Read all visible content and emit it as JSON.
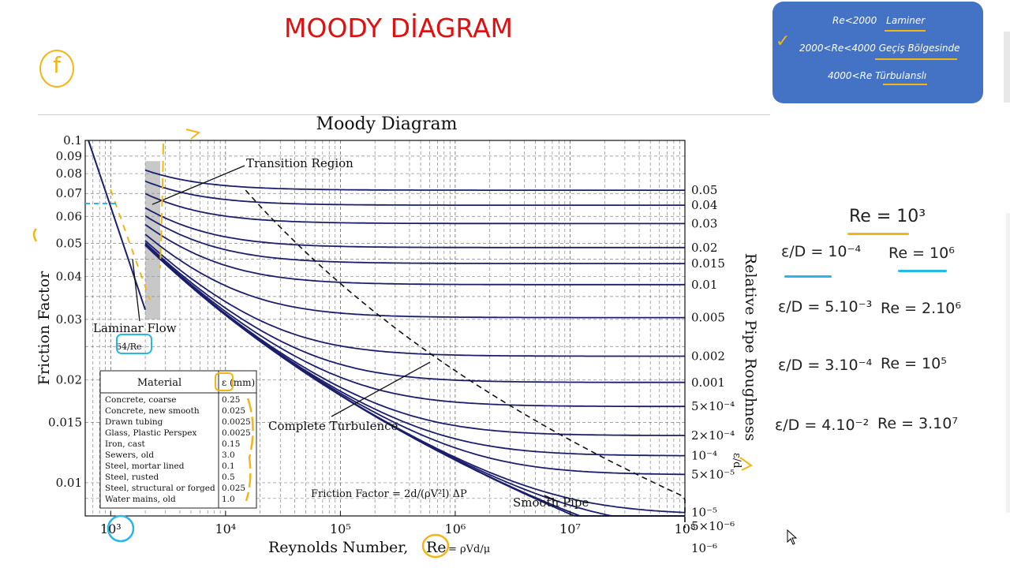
{
  "slide": {
    "title": "MOODY DİAGRAM",
    "f_mark": "f"
  },
  "note_box": {
    "lines": [
      {
        "text": "Re<2000",
        "label": "Laminer"
      },
      {
        "text": "2000<Re<4000",
        "label": "Geçiş Bölgesinde"
      },
      {
        "text": "4000<Re",
        "label": "Türbulanslı"
      }
    ],
    "check": "✓"
  },
  "chart_data": {
    "type": "line",
    "title": "Moody Diagram",
    "xlabel": "Reynolds Number,",
    "ylabel": "Friction Factor",
    "right_label": "Relative Pipe Roughness",
    "right_label_symbol": "ε/d",
    "x_scale": "log",
    "y_scale": "log",
    "xlim": [
      600,
      100000000
    ],
    "ylim": [
      0.008,
      0.1
    ],
    "x_ticks": [
      {
        "value": 1000,
        "label": "10³"
      },
      {
        "value": 10000,
        "label": "10⁴"
      },
      {
        "value": 100000,
        "label": "10⁵"
      },
      {
        "value": 1000000,
        "label": "10⁶"
      },
      {
        "value": 10000000,
        "label": "10⁷"
      },
      {
        "value": 100000000,
        "label": "10⁸"
      }
    ],
    "y_ticks": [
      {
        "value": 0.1,
        "label": "0.1"
      },
      {
        "value": 0.09,
        "label": "0.09"
      },
      {
        "value": 0.08,
        "label": "0.08"
      },
      {
        "value": 0.07,
        "label": "0.07"
      },
      {
        "value": 0.06,
        "label": "0.06"
      },
      {
        "value": 0.05,
        "label": "0.05"
      },
      {
        "value": 0.04,
        "label": "0.04"
      },
      {
        "value": 0.03,
        "label": "0.03"
      },
      {
        "value": 0.02,
        "label": "0.02"
      },
      {
        "value": 0.015,
        "label": "0.015"
      },
      {
        "value": 0.01,
        "label": "0.01"
      }
    ],
    "grid": true,
    "laminar": {
      "label": "Laminar Flow",
      "formula": "64/Re",
      "re_range": [
        640,
        2000
      ]
    },
    "transition": {
      "label": "Transition Region",
      "re_range": [
        2000,
        2700
      ]
    },
    "complete_turbulence": {
      "label": "Complete Turbulence"
    },
    "smooth_pipe": {
      "label": "Smooth Pipe"
    },
    "friction_factor_formula": "Friction Factor = 2d/(ρV²l) ΔP",
    "re_formula": "ρVd/μ",
    "roughness_curves": [
      {
        "value": 0.05,
        "label": "0.05"
      },
      {
        "value": 0.04,
        "label": "0.04"
      },
      {
        "value": 0.03,
        "label": "0.03"
      },
      {
        "value": 0.02,
        "label": "0.02"
      },
      {
        "value": 0.015,
        "label": "0.015"
      },
      {
        "value": 0.01,
        "label": "0.01"
      },
      {
        "value": 0.005,
        "label": "0.005"
      },
      {
        "value": 0.002,
        "label": "0.002"
      },
      {
        "value": 0.001,
        "label": "0.001"
      },
      {
        "value": 0.0005,
        "label": "5×10⁻⁴"
      },
      {
        "value": 0.0002,
        "label": "2×10⁻⁴"
      },
      {
        "value": 0.0001,
        "label": "10⁻⁴"
      },
      {
        "value": 5e-05,
        "label": "5×10⁻⁵"
      },
      {
        "value": 1e-05,
        "label": "10⁻⁵"
      },
      {
        "value": 5e-06,
        "label": "5×10⁻⁶"
      },
      {
        "value": 1e-06,
        "label": "10⁻⁶"
      },
      {
        "value": 0,
        "label": ""
      }
    ],
    "material_table": {
      "headers": [
        "Material",
        "ε (mm)"
      ],
      "rows": [
        [
          "Concrete, coarse",
          "0.25"
        ],
        [
          "Concrete, new smooth",
          "0.025"
        ],
        [
          "Drawn tubing",
          "0.0025"
        ],
        [
          "Glass, Plastic Perspex",
          "0.0025"
        ],
        [
          "Iron, cast",
          "0.15"
        ],
        [
          "Sewers, old",
          "3.0"
        ],
        [
          "Steel, mortar lined",
          "0.1"
        ],
        [
          "Steel, rusted",
          "0.5"
        ],
        [
          "Steel, structural or forged",
          "0.025"
        ],
        [
          "Water mains, old",
          "1.0"
        ]
      ]
    }
  },
  "handwriting": {
    "title": "Re = 10³",
    "rows": [
      {
        "rel": "ε/D = 10⁻⁴",
        "re": "Re = 10⁶"
      },
      {
        "rel": "ε/D = 5.10⁻³",
        "re": "Re = 2.10⁶"
      },
      {
        "rel": "ε/D = 3.10⁻⁴",
        "re": "Re = 10⁵"
      },
      {
        "rel": "ε/D = 4.10⁻²",
        "re": "Re = 3.10⁷"
      }
    ]
  },
  "colors": {
    "curve": "#1b1f6b",
    "title_red": "#e01010",
    "note_blue": "#4472c4",
    "marker_yellow": "#f3b616",
    "marker_cyan": "#29b6e8"
  }
}
